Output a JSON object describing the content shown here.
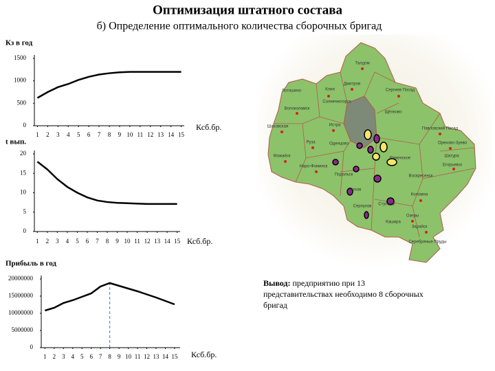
{
  "title": "Оптимизация штатного состава",
  "subtitle": "б) Определение оптимального количества сборочных бригад",
  "conclusion": {
    "label": "Вывод:",
    "text": "предприятию при 13 представительствах необходимо 8 сборочных бригад"
  },
  "map": {
    "labels": [
      "Талдом",
      "Дмитров",
      "Сергиев Посад",
      "Клин",
      "Лотошино",
      "Солнечногорск",
      "Волоколамск",
      "Шаховская",
      "Истра",
      "Руза",
      "Одинцово",
      "Можайск",
      "Наро-Фоминск",
      "Подольск",
      "Чехов",
      "Серпухов",
      "Ступино",
      "Кашира",
      "Зарайск",
      "Серебряные Пруды",
      "Озеры",
      "Коломна",
      "Воскресенск",
      "Егорьевск",
      "Шатура",
      "Орехово-Зуево",
      "Павловский Посад",
      "Раменское",
      "Щёлково"
    ]
  },
  "chart_data": [
    {
      "type": "line",
      "ylabel": "Кз в год",
      "xlabel": "Ксб.бр.",
      "x": [
        1,
        2,
        3,
        4,
        5,
        6,
        7,
        8,
        9,
        10,
        11,
        12,
        13,
        14,
        15
      ],
      "xlim": [
        0.7,
        15.3
      ],
      "xticks": [
        1,
        2,
        3,
        4,
        5,
        6,
        7,
        8,
        9,
        10,
        11,
        12,
        13,
        14,
        15
      ],
      "ylim": [
        0,
        1500
      ],
      "yticks": [
        0,
        500,
        1000,
        1500
      ],
      "grid": false,
      "color": "#000000",
      "values": [
        620,
        750,
        860,
        930,
        1020,
        1090,
        1140,
        1170,
        1190,
        1200,
        1200,
        1200,
        1200,
        1200,
        1200
      ]
    },
    {
      "type": "line",
      "ylabel": "t вып.",
      "xlabel": "Ксб.бр.",
      "x": [
        1,
        2,
        3,
        4,
        5,
        6,
        7,
        8,
        9,
        10,
        11,
        12,
        13,
        14,
        15
      ],
      "xlim": [
        0.7,
        15.3
      ],
      "xticks": [
        1,
        2,
        3,
        4,
        5,
        6,
        7,
        8,
        9,
        10,
        11,
        12,
        13,
        14,
        15
      ],
      "ylim": [
        0,
        20
      ],
      "yticks": [
        0,
        5,
        10,
        15,
        20
      ],
      "grid": false,
      "color": "#000000",
      "values": [
        18,
        16,
        13.5,
        11.5,
        10,
        8.8,
        8,
        7.6,
        7.4,
        7.3,
        7.2,
        7.1,
        7.1,
        7.1,
        7.1
      ]
    },
    {
      "type": "line",
      "ylabel": "Прибыль в год",
      "xlabel": "Ксб.бр.",
      "x": [
        1,
        2,
        3,
        4,
        5,
        6,
        7,
        8,
        9,
        10,
        11,
        12,
        13,
        14,
        15
      ],
      "xlim": [
        0.6,
        15.6
      ],
      "xticks": [
        1,
        2,
        3,
        4,
        5,
        6,
        7,
        8,
        9,
        10,
        11,
        12,
        13,
        14,
        15
      ],
      "ylim": [
        0,
        20000000
      ],
      "yticks": [
        0,
        5000000,
        10000000,
        15000000,
        20000000
      ],
      "grid": false,
      "color": "#000000",
      "values": [
        10800000,
        11600000,
        13000000,
        13800000,
        14800000,
        15800000,
        17800000,
        18800000,
        18000000,
        17200000,
        16400000,
        15500000,
        14600000,
        13600000,
        12600000
      ],
      "vline": 8,
      "vline_color": "#4472c4"
    }
  ]
}
